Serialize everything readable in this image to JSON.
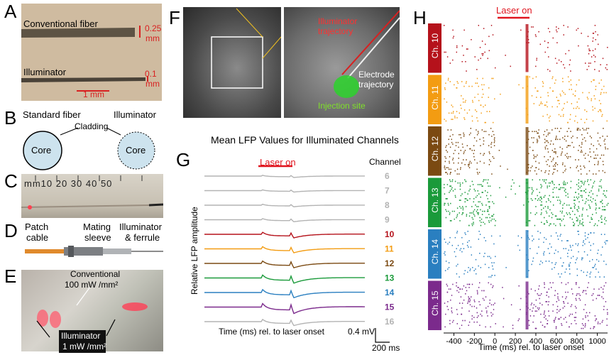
{
  "panels": {
    "A": {
      "letter": "A",
      "fiber_label": "Conventional fiber",
      "fiber_diam_line1": "0.25",
      "fiber_diam_line2": "mm",
      "illuminator_label": "Illuminator",
      "illum_diam_line1": "0.1",
      "illum_diam_line2": "mm",
      "scale_label": "1 mm"
    },
    "B": {
      "letter": "B",
      "standard_label": "Standard fiber",
      "illuminator_label": "Illuminator",
      "cladding_label": "Cladding",
      "core_left": "Core",
      "core_right": "Core"
    },
    "C": {
      "letter": "C",
      "ruler_text": "mm10   20   30   40   50"
    },
    "D": {
      "letter": "D",
      "patch_line1": "Patch",
      "patch_line2": "cable",
      "mating_line1": "Mating",
      "mating_line2": "sleeve",
      "illum_line1": "Illuminator",
      "illum_line2": "& ferrule"
    },
    "E": {
      "letter": "E",
      "conv_line1": "Conventional",
      "conv_line2": "100 mW /mm²",
      "illum_line1": "Illuminator",
      "illum_line2": "1 mW /mm²"
    },
    "F": {
      "letter": "F",
      "illum_traj_line1": "Illuminator",
      "illum_traj_line2": "trajectory",
      "elec_traj_line1": "Electrode",
      "elec_traj_line2": "trajectory",
      "injection_label": "Injection site"
    },
    "G": {
      "letter": "G",
      "title": "Mean LFP Values for Illuminated Channels",
      "laser_label": "Laser on",
      "ylabel": "Relative LFP amplitude",
      "xlabel": "Time (ms) rel. to laser onset",
      "channel_header": "Channel",
      "scale_v": "0.4 mV",
      "scale_t": "200 ms"
    },
    "H": {
      "letter": "H",
      "laser_label": "Laser on",
      "xlabel": "Time (ms) rel. to laser onset",
      "xticks": [
        "-400",
        "-200",
        "0",
        "200",
        "400",
        "600",
        "800",
        "1000"
      ]
    }
  },
  "colors": {
    "gray": "#b3b3b3",
    "ch10": "#b5121b",
    "ch11": "#f39c12",
    "ch12": "#7b4a12",
    "ch13": "#1a9a3a",
    "ch14": "#2a7fc0",
    "ch15": "#7b2a8c",
    "laser": "#e0141e"
  },
  "chart_data": [
    {
      "type": "line",
      "panel": "G",
      "title": "Mean LFP Values for Illuminated Channels",
      "xlabel": "Time (ms) rel. to laser onset",
      "ylabel": "Relative LFP amplitude",
      "series": [
        {
          "name": "6",
          "color": "#b3b3b3",
          "amplitude": 0.35
        },
        {
          "name": "7",
          "color": "#b3b3b3",
          "amplitude": 0.35
        },
        {
          "name": "8",
          "color": "#b3b3b3",
          "amplitude": 0.4
        },
        {
          "name": "9",
          "color": "#b3b3b3",
          "amplitude": 0.5
        },
        {
          "name": "10",
          "color": "#b5121b",
          "amplitude": 0.9
        },
        {
          "name": "11",
          "color": "#f39c12",
          "amplitude": 1.0
        },
        {
          "name": "12",
          "color": "#7b4a12",
          "amplitude": 1.1
        },
        {
          "name": "13",
          "color": "#1a9a3a",
          "amplitude": 1.3
        },
        {
          "name": "14",
          "color": "#2a7fc0",
          "amplitude": 1.3
        },
        {
          "name": "15",
          "color": "#7b2a8c",
          "amplitude": 1.6
        },
        {
          "name": "16",
          "color": "#b3b3b3",
          "amplitude": 1.0
        }
      ]
    },
    {
      "type": "scatter",
      "panel": "H",
      "xlabel": "Time (ms) rel. to laser onset",
      "xlim": [
        -500,
        1100
      ],
      "laser_on": [
        0,
        300
      ],
      "channels": [
        {
          "name": "Ch. 10",
          "color": "#b5121b",
          "density": 0.05
        },
        {
          "name": "Ch. 11",
          "color": "#f39c12",
          "density": 0.09
        },
        {
          "name": "Ch. 12",
          "color": "#7b4a12",
          "density": 0.16
        },
        {
          "name": "Ch. 13",
          "color": "#1a9a3a",
          "density": 0.22
        },
        {
          "name": "Ch. 14",
          "color": "#2a7fc0",
          "density": 0.1
        },
        {
          "name": "Ch. 15",
          "color": "#7b2a8c",
          "density": 0.14
        }
      ]
    }
  ]
}
